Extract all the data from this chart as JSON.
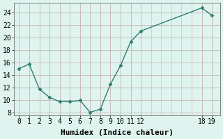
{
  "x": [
    0,
    1,
    2,
    3,
    4,
    5,
    6,
    7,
    8,
    9,
    10,
    11,
    12,
    18,
    19
  ],
  "y": [
    15,
    15.7,
    11.7,
    10.4,
    9.7,
    9.7,
    9.9,
    8.0,
    8.5,
    12.5,
    15.5,
    19.3,
    21.0,
    24.7,
    23.5
  ],
  "line_color": "#2e7d6e",
  "marker": "D",
  "marker_size": 2.5,
  "background_color": "#dff4ef",
  "grid_color_major": "#bbbbbb",
  "grid_color_minor": "#e8b8b8",
  "xlabel": "Humidex (Indice chaleur)",
  "xlabel_fontsize": 8,
  "ylabel_ticks": [
    8,
    10,
    12,
    14,
    16,
    18,
    20,
    22,
    24
  ],
  "xticks": [
    0,
    1,
    2,
    3,
    4,
    5,
    6,
    7,
    8,
    9,
    10,
    11,
    12,
    18,
    19
  ],
  "xlim": [
    -0.5,
    19.8
  ],
  "ylim": [
    7.5,
    25.5
  ]
}
